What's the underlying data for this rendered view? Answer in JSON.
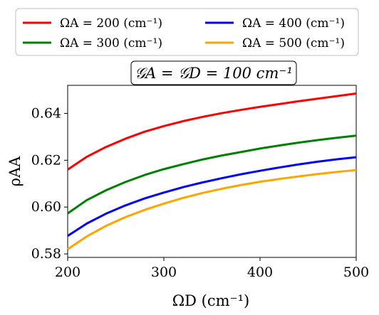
{
  "chart_data": {
    "type": "line",
    "title": "𝒢A = 𝒢D = 100 cm⁻¹",
    "xlabel": "ΩD (cm⁻¹)",
    "ylabel": "ρAA",
    "xlim": [
      200,
      500
    ],
    "ylim": [
      0.5785,
      0.652
    ],
    "x_ticks": [
      "200",
      "300",
      "400",
      "500"
    ],
    "y_ticks": [
      "0.58",
      "0.60",
      "0.62",
      "0.64"
    ],
    "x": [
      200,
      220,
      240,
      260,
      280,
      300,
      320,
      340,
      360,
      380,
      400,
      420,
      440,
      460,
      480,
      500
    ],
    "series": [
      {
        "name": "ΩA = 200 (cm⁻¹)",
        "color": "#ff0000",
        "values": [
          0.616,
          0.6215,
          0.6257,
          0.6292,
          0.6322,
          0.6346,
          0.6367,
          0.6385,
          0.6401,
          0.6415,
          0.6428,
          0.644,
          0.6452,
          0.6463,
          0.6474,
          0.6485
        ]
      },
      {
        "name": "ΩA = 300 (cm⁻¹)",
        "color": "#008000",
        "values": [
          0.5973,
          0.603,
          0.6072,
          0.6107,
          0.6137,
          0.6162,
          0.6183,
          0.6203,
          0.622,
          0.6235,
          0.625,
          0.6263,
          0.6275,
          0.6286,
          0.6296,
          0.6305
        ]
      },
      {
        "name": "ΩA = 400 (cm⁻¹)",
        "color": "#0000ff",
        "values": [
          0.5877,
          0.593,
          0.5972,
          0.6007,
          0.6037,
          0.6062,
          0.6085,
          0.6105,
          0.6123,
          0.614,
          0.6155,
          0.6169,
          0.6182,
          0.6194,
          0.6204,
          0.6213
        ]
      },
      {
        "name": "ΩA = 500 (cm⁻¹)",
        "color": "#ffa500",
        "values": [
          0.582,
          0.5875,
          0.592,
          0.5957,
          0.5988,
          0.6015,
          0.6039,
          0.606,
          0.6078,
          0.6094,
          0.6108,
          0.612,
          0.6131,
          0.6141,
          0.615,
          0.6158
        ]
      }
    ],
    "legend_placement": "top, outside plot, 2 columns",
    "grid": false
  }
}
